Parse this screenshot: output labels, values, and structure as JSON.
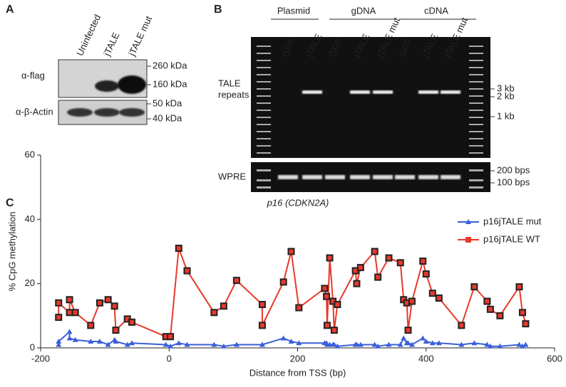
{
  "panels": {
    "a": {
      "label": "A",
      "lanes": [
        "Uninfected",
        "jTALE",
        "jTALE mut"
      ],
      "rows": [
        "α-flag",
        "α-β-Actin"
      ],
      "markers": [
        "260 kDa",
        "160 kDa",
        "50 kDa",
        "40 kDa"
      ]
    },
    "b": {
      "label": "B",
      "groups": [
        "Plasmid",
        "gDNA",
        "cDNA"
      ],
      "lanes": [
        "GFP",
        "jTALE",
        "GFP",
        "jTALE",
        "jTALE mut",
        "GFP",
        "jTALE",
        "jTALE mut"
      ],
      "rows": [
        "TALE",
        "repeats",
        "WPRE"
      ],
      "markers": [
        "3 kb",
        "2 kb",
        "1 kb",
        "200 bps",
        "100 bps"
      ]
    },
    "c": {
      "label": "C"
    }
  },
  "chart_data": {
    "type": "line",
    "title": "p16 (CDKN2A)",
    "x_label": "Distance from TSS (bp)",
    "y_label": "% CpG methylation",
    "xlim": [
      -200,
      600
    ],
    "xticks": [
      -200,
      0,
      200,
      400,
      600
    ],
    "ylim": [
      0,
      60
    ],
    "yticks": [
      0,
      20,
      40,
      60
    ],
    "legend": "upper right",
    "x": [
      -172,
      -172,
      -155,
      -155,
      -146,
      -122,
      -108,
      -95,
      -85,
      -83,
      -65,
      -58,
      -5,
      2,
      15,
      28,
      70,
      85,
      105,
      145,
      145,
      178,
      190,
      202,
      242,
      245,
      246,
      250,
      255,
      257,
      262,
      290,
      292,
      298,
      320,
      325,
      342,
      360,
      365,
      370,
      372,
      378,
      395,
      400,
      410,
      420,
      455,
      475,
      495,
      500,
      515,
      545,
      550,
      555
    ],
    "series": [
      {
        "name": "p16jTALE mut",
        "color": "#3a5fd9",
        "values": [
          1,
          2,
          5,
          3,
          2.5,
          2,
          2,
          1,
          2.5,
          2,
          1,
          1.5,
          1,
          0.5,
          1.5,
          1,
          1,
          0.5,
          1,
          1,
          1,
          3,
          2,
          1.5,
          1.5,
          1.5,
          1,
          1,
          1,
          1,
          0.5,
          1,
          1,
          1,
          1,
          0.5,
          1,
          1,
          3,
          1.5,
          1.5,
          1,
          3,
          2,
          1.5,
          1.5,
          1,
          1.5,
          1,
          0.5,
          0.5,
          1,
          0.5,
          1
        ]
      },
      {
        "name": "p16jTALE WT",
        "color": "#e8392a",
        "values": [
          9.5,
          14,
          11,
          15,
          11,
          7,
          14,
          15,
          13,
          5.5,
          9,
          8,
          3.5,
          3.5,
          31,
          24,
          11,
          13,
          21,
          13.5,
          7,
          20.5,
          30,
          12.5,
          18.5,
          16,
          7,
          28,
          14.5,
          5.5,
          13.5,
          24,
          20,
          25,
          30,
          22,
          28,
          26.5,
          15,
          14,
          5.5,
          14.5,
          27,
          23,
          17,
          15.5,
          7,
          19,
          14.5,
          12,
          10,
          19,
          11,
          7.5
        ]
      }
    ]
  }
}
